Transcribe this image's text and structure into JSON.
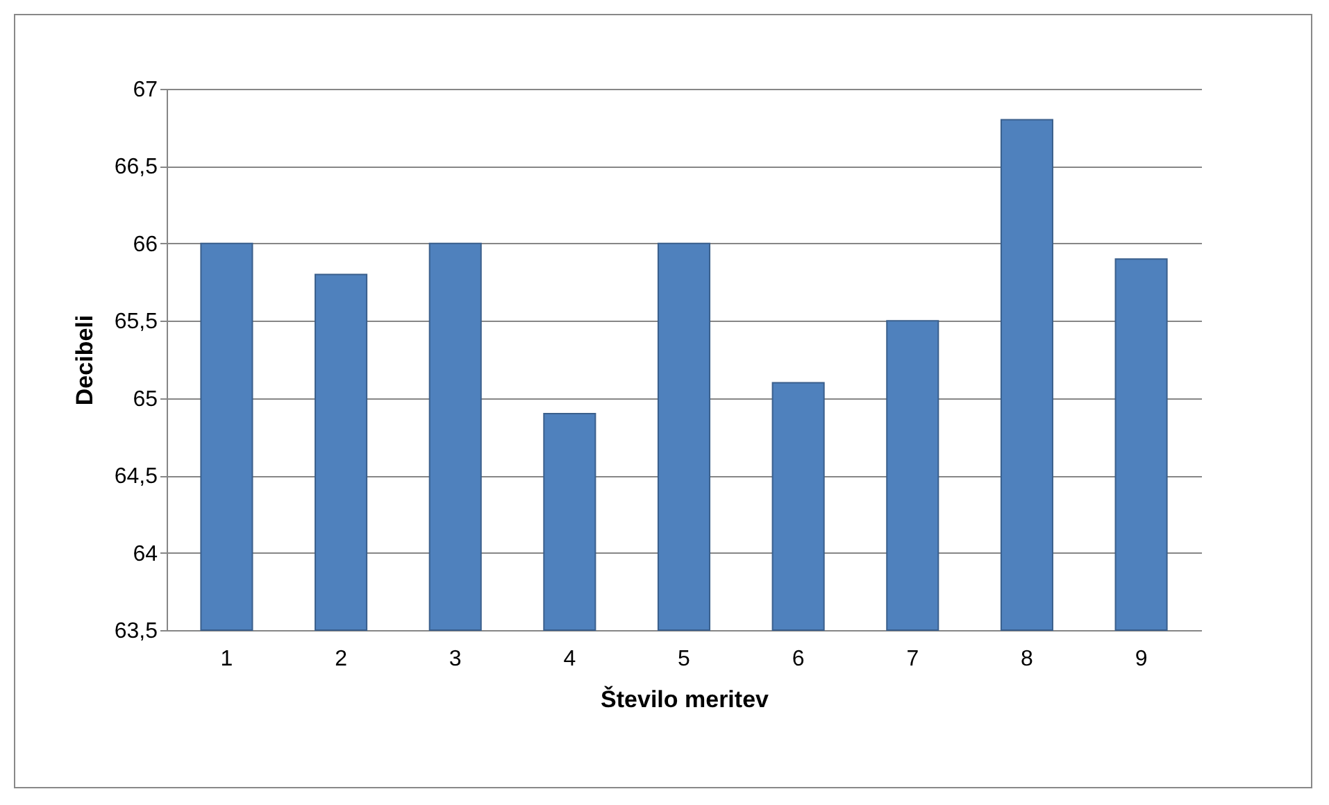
{
  "chart_data": {
    "type": "bar",
    "xlabel": "Število meritev",
    "ylabel": "Decibeli",
    "categories": [
      "1",
      "2",
      "3",
      "4",
      "5",
      "6",
      "7",
      "8",
      "9"
    ],
    "values": [
      66,
      65.8,
      66,
      64.9,
      66,
      65.1,
      65.5,
      66.8,
      65.9
    ],
    "color": "#4f81bd",
    "ylim": [
      63.5,
      67
    ],
    "yticks": [
      {
        "value": 63.5,
        "label": "63,5"
      },
      64,
      {
        "value": 64.5,
        "label": "64,5"
      },
      65,
      {
        "value": 65.5,
        "label": "65,5"
      },
      66,
      {
        "value": 66.5,
        "label": "66,5"
      },
      67
    ],
    "grid": true
  }
}
